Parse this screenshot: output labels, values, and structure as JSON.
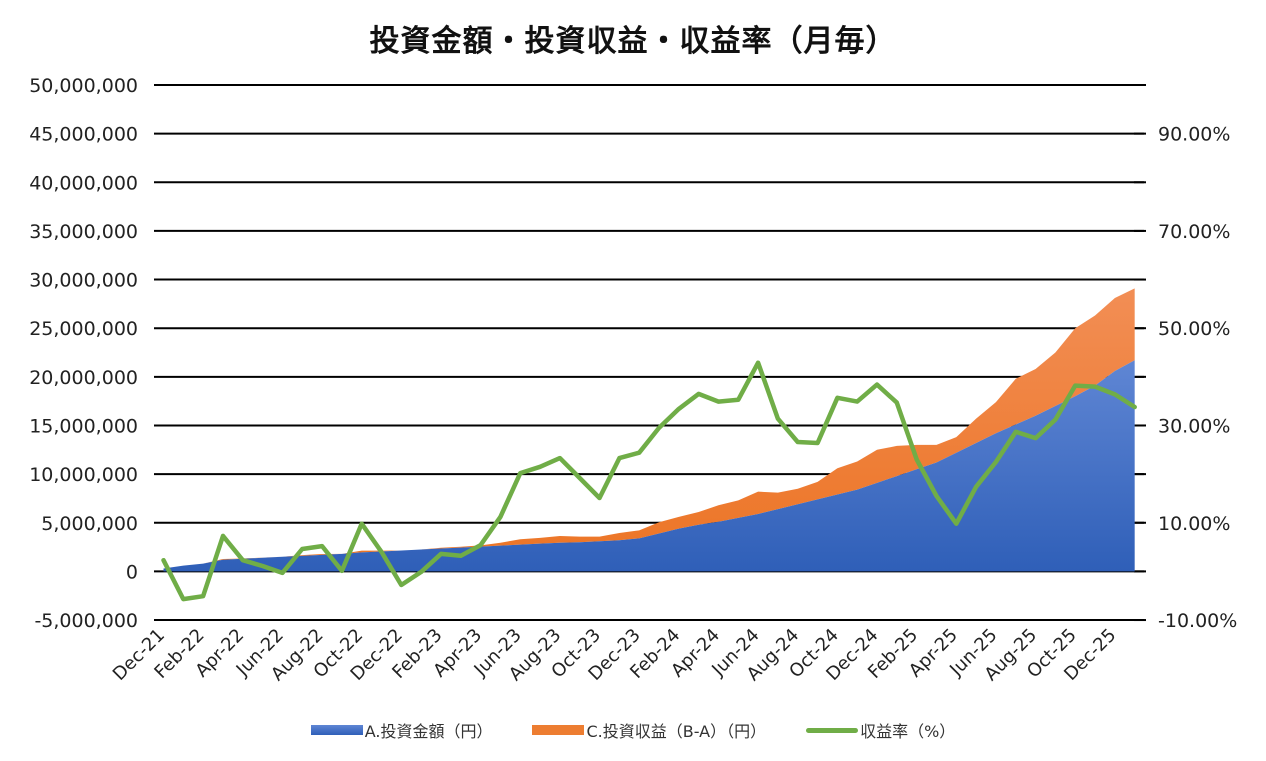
{
  "chart_data": {
    "type": "area",
    "title": "投資金額・投資収益・収益率（月毎）",
    "xlabel": "",
    "ylabel": "",
    "y2label": "",
    "ylim": [
      -5000000,
      50000000
    ],
    "y2lim": [
      -0.1,
      1.0
    ],
    "yticks": [
      "50,000,000",
      "45,000,000",
      "40,000,000",
      "35,000,000",
      "30,000,000",
      "25,000,000",
      "20,000,000",
      "15,000,000",
      "10,000,000",
      "5,000,000",
      "0",
      "-5,000,000"
    ],
    "y2ticks": [
      "90.00%",
      "70.00%",
      "50.00%",
      "30.00%",
      "10.00%",
      "-10.00%"
    ],
    "xtick_labels": [
      "Dec-21",
      "Feb-22",
      "Apr-22",
      "Jun-22",
      "Aug-22",
      "Oct-22",
      "Dec-22",
      "Feb-23",
      "Apr-23",
      "Jun-23",
      "Aug-23",
      "Oct-23",
      "Dec-23",
      "Feb-24",
      "Apr-24",
      "Jun-24",
      "Aug-24",
      "Oct-24",
      "Dec-24",
      "Feb-25",
      "Apr-25",
      "Jun-25",
      "Aug-25",
      "Oct-25",
      "Dec-25"
    ],
    "grid": true,
    "legend_position": "bottom",
    "categories": [
      "Dec-21",
      "Jan-22",
      "Feb-22",
      "Mar-22",
      "Apr-22",
      "May-22",
      "Jun-22",
      "Jul-22",
      "Aug-22",
      "Sep-22",
      "Oct-22",
      "Nov-22",
      "Dec-22",
      "Jan-23",
      "Feb-23",
      "Mar-23",
      "Apr-23",
      "May-23",
      "Jun-23",
      "Jul-23",
      "Aug-23",
      "Sep-23",
      "Oct-23",
      "Nov-23",
      "Dec-23",
      "Jan-24",
      "Feb-24",
      "Mar-24",
      "Apr-24",
      "May-24",
      "Jun-24",
      "Jul-24",
      "Aug-24",
      "Sep-24",
      "Oct-24",
      "Nov-24",
      "Dec-24",
      "Jan-25",
      "Feb-25",
      "Mar-25",
      "Apr-25",
      "May-25",
      "Jun-25",
      "Jul-25",
      "Aug-25",
      "Sep-25",
      "Oct-25",
      "Nov-25",
      "Dec-25",
      "Jan-26"
    ],
    "series": [
      {
        "name": "A.投資金額（円）",
        "type": "stacked-area",
        "axis": "left",
        "color": "#4472c4",
        "values": [
          300000,
          600000,
          800000,
          1200000,
          1300000,
          1400000,
          1500000,
          1600000,
          1700000,
          1800000,
          1950000,
          2050000,
          2150000,
          2250000,
          2350000,
          2450000,
          2550000,
          2650000,
          2750000,
          2850000,
          2950000,
          3000000,
          3100000,
          3200000,
          3400000,
          3900000,
          4400000,
          4800000,
          5100000,
          5500000,
          5900000,
          6400000,
          6900000,
          7400000,
          7900000,
          8400000,
          9100000,
          9800000,
          10500000,
          11200000,
          12200000,
          13200000,
          14200000,
          15100000,
          16000000,
          17000000,
          18000000,
          19100000,
          20600000,
          21700000
        ]
      },
      {
        "name": "C.投資収益（B-A）（円）",
        "type": "stacked-area",
        "axis": "left",
        "color": "#ed7d31",
        "values": [
          0,
          0,
          0,
          80000,
          30000,
          20000,
          0,
          70000,
          90000,
          0,
          190000,
          80000,
          0,
          0,
          80000,
          80000,
          130000,
          300000,
          550000,
          600000,
          690000,
          580000,
          480000,
          750000,
          820000,
          1150000,
          1200000,
          1300000,
          1700000,
          1800000,
          2300000,
          1700000,
          1600000,
          1800000,
          2700000,
          2900000,
          3400000,
          3100000,
          2500000,
          1800000,
          1600000,
          2500000,
          3200000,
          4700000,
          4800000,
          5500000,
          7000000,
          7200000,
          7500000,
          7400000
        ]
      },
      {
        "name": "収益率（%）",
        "type": "line",
        "axis": "right",
        "color": "#70ad47",
        "values": [
          2.3,
          -5.7,
          -5.1,
          7.3,
          2.3,
          1.1,
          -0.3,
          4.6,
          5.2,
          0.1,
          9.8,
          4.0,
          -2.8,
          -0.1,
          3.6,
          3.2,
          5.4,
          11.2,
          20.2,
          21.5,
          23.3,
          19.2,
          15.1,
          23.3,
          24.4,
          29.5,
          33.4,
          36.5,
          34.9,
          35.3,
          42.9,
          31.4,
          26.6,
          26.4,
          35.7,
          34.9,
          38.4,
          34.7,
          23.0,
          15.5,
          9.8,
          17.4,
          22.5,
          28.7,
          27.4,
          31.2,
          38.2,
          38.0,
          36.4,
          33.8
        ]
      }
    ]
  },
  "legend": {
    "items": [
      {
        "label": "A.投資金額（円）",
        "color": "#4472c4"
      },
      {
        "label": "C.投資収益（B-A）（円）",
        "color": "#ed7d31"
      },
      {
        "label": "収益率（%）",
        "color": "#70ad47"
      }
    ]
  }
}
